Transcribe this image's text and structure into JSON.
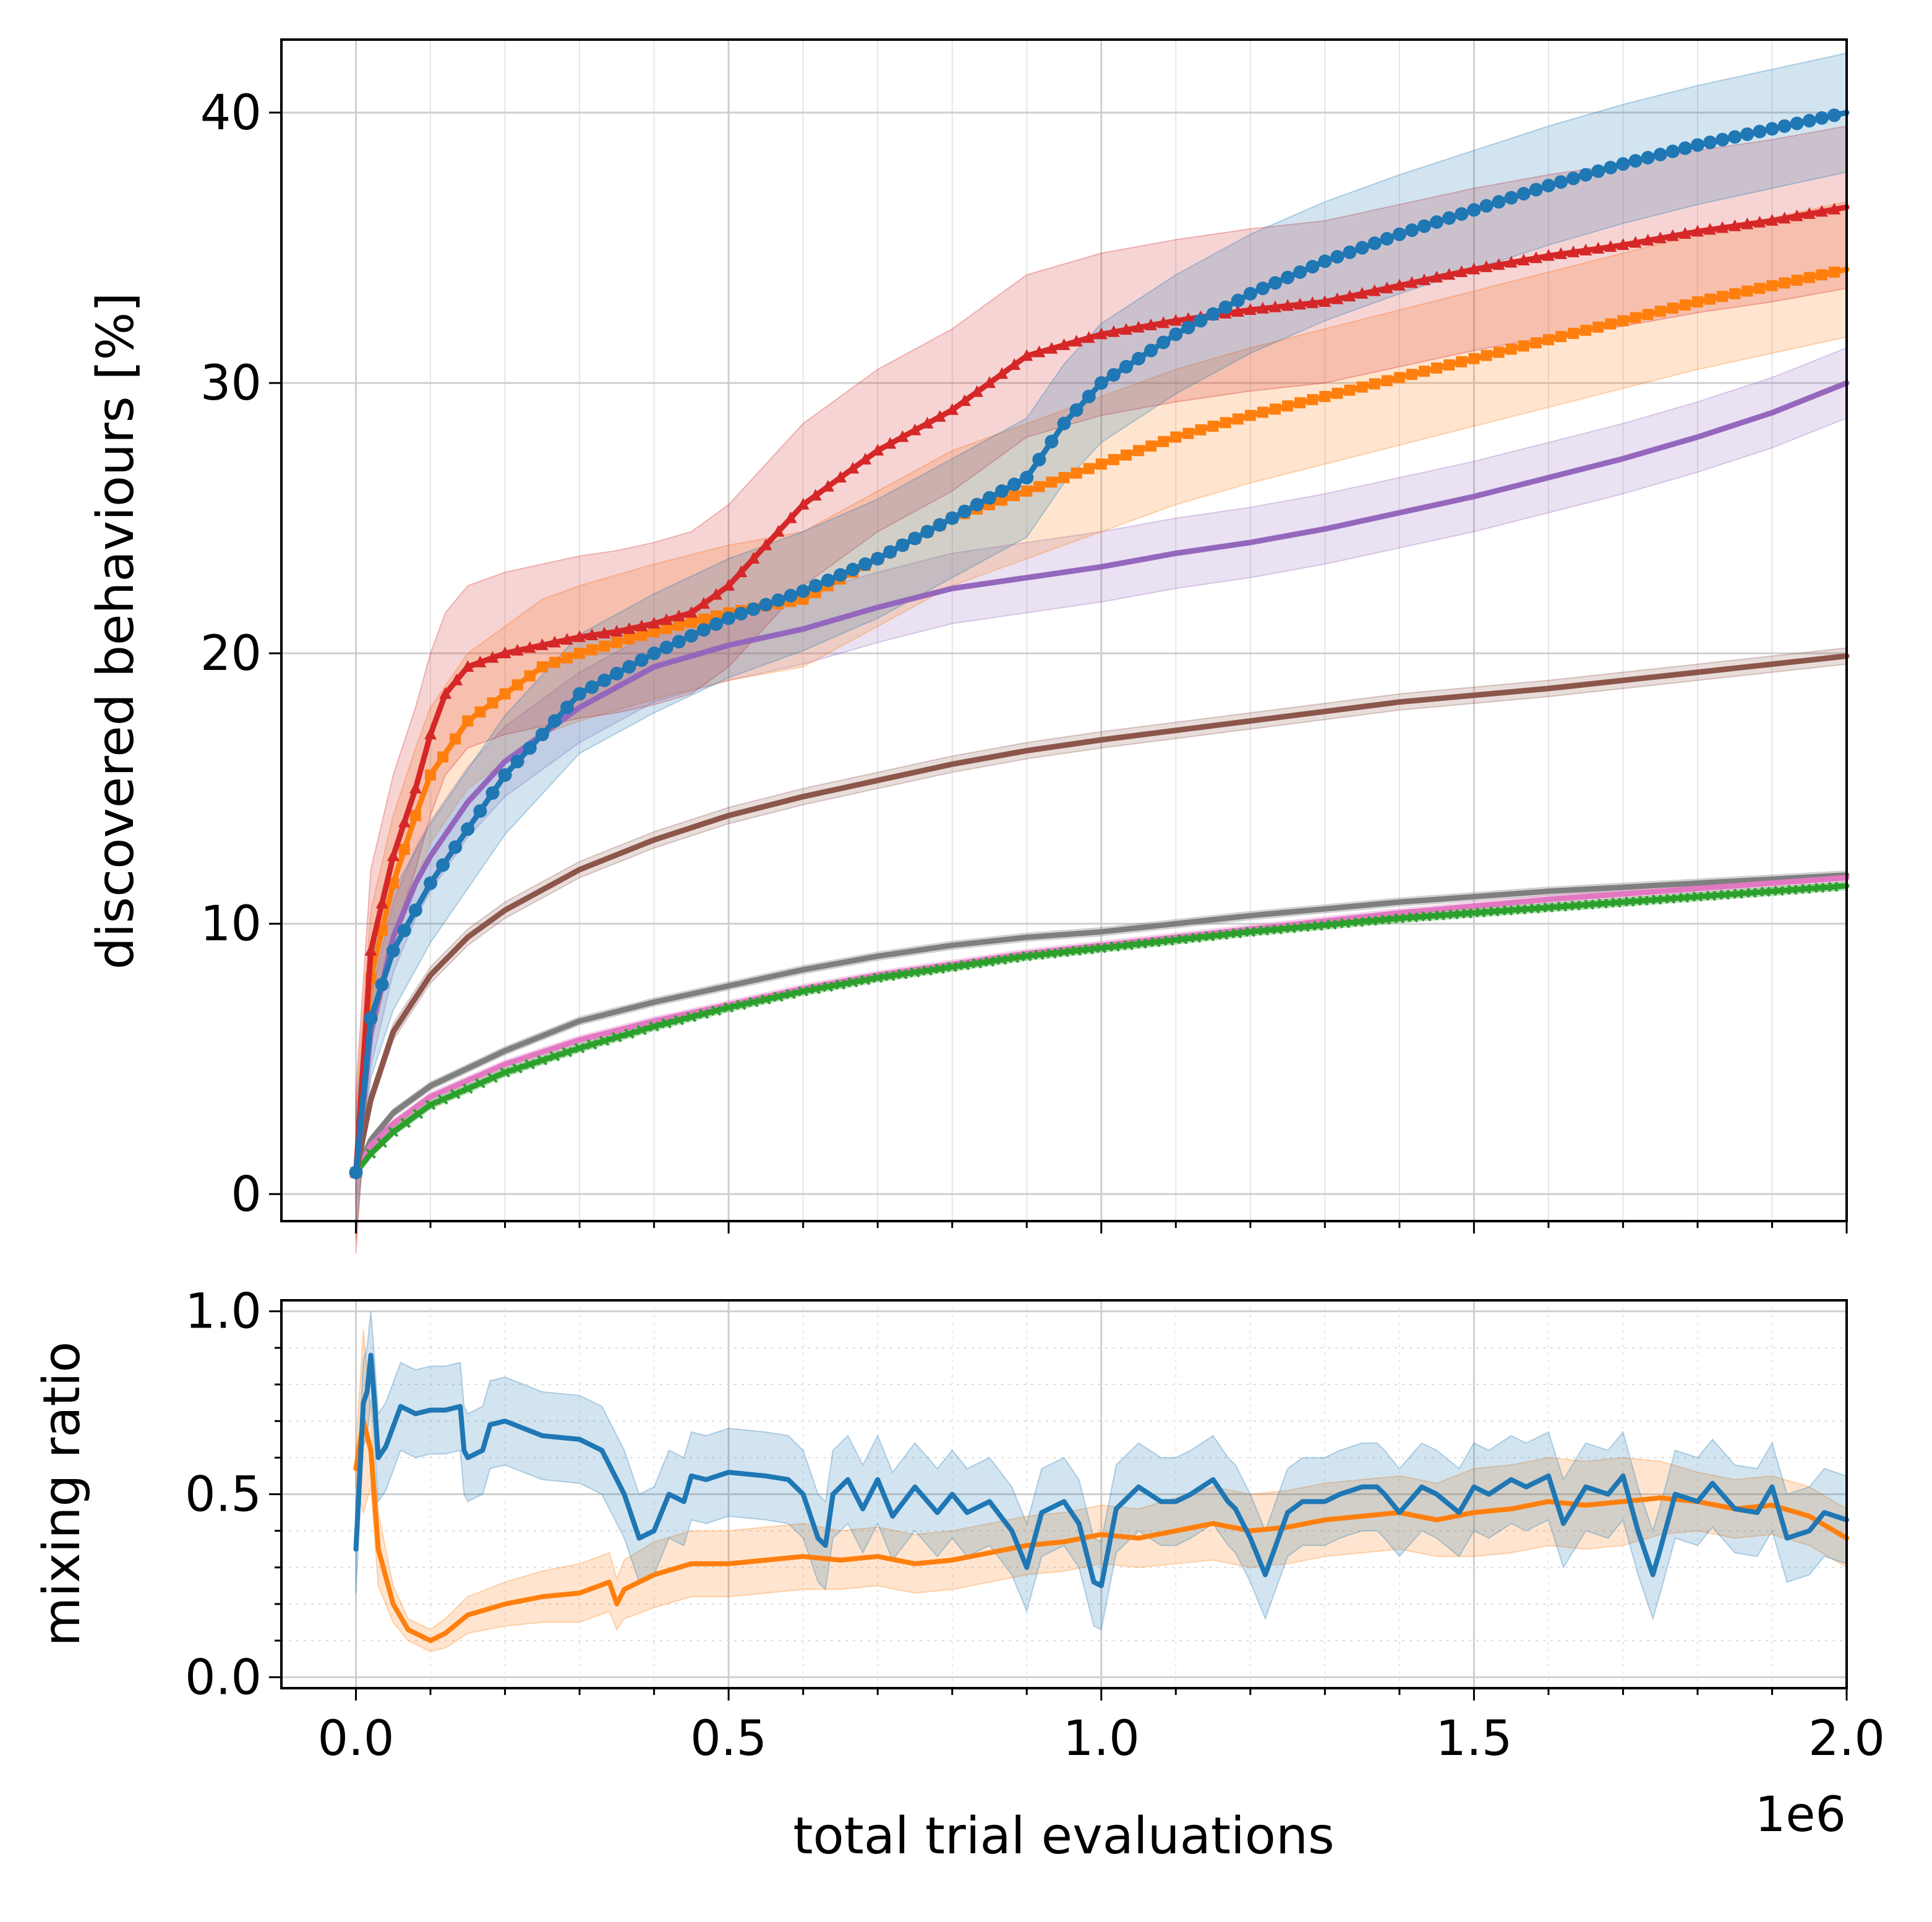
{
  "chart_data": [
    {
      "type": "line",
      "title": "",
      "xlabel": "",
      "ylabel": "discovered behaviours [%]",
      "xlim": [
        -0.1,
        2.0
      ],
      "ylim": [
        -1,
        42.7
      ],
      "x_ticks": [
        0.0,
        0.5,
        1.0,
        1.5,
        2.0
      ],
      "y_ticks": [
        0,
        10,
        20,
        30,
        40
      ],
      "y_tick_labels": [
        "0",
        "10",
        "20",
        "30",
        "40"
      ],
      "grid": true,
      "legend": "none",
      "series": [
        {
          "color": "#7f7f7f",
          "x": [
            0.0,
            0.02,
            0.05,
            0.1,
            0.2,
            0.3,
            0.4,
            0.5,
            0.6,
            0.7,
            0.8,
            0.9,
            1.0,
            1.2,
            1.4,
            1.6,
            1.8,
            2.0
          ],
          "y": [
            0.8,
            2.0,
            3.0,
            4.0,
            5.3,
            6.4,
            7.1,
            7.7,
            8.3,
            8.8,
            9.2,
            9.5,
            9.7,
            10.3,
            10.8,
            11.2,
            11.5,
            11.8
          ],
          "band": 0.15
        },
        {
          "color": "#e377c2",
          "x": [
            0.0,
            0.02,
            0.05,
            0.1,
            0.2,
            0.3,
            0.4,
            0.5,
            0.6,
            0.7,
            0.8,
            0.9,
            1.0,
            1.2,
            1.4,
            1.6,
            1.8,
            2.0
          ],
          "y": [
            0.8,
            1.8,
            2.6,
            3.6,
            4.8,
            5.7,
            6.4,
            7.0,
            7.6,
            8.1,
            8.5,
            8.9,
            9.2,
            9.8,
            10.4,
            10.9,
            11.3,
            11.7
          ],
          "band": 0.15
        },
        {
          "color": "#2ca02c",
          "marker": "x",
          "x": [
            0.0,
            0.02,
            0.05,
            0.1,
            0.2,
            0.3,
            0.4,
            0.5,
            0.6,
            0.7,
            0.8,
            0.9,
            1.0,
            1.2,
            1.4,
            1.6,
            1.8,
            2.0
          ],
          "y": [
            0.8,
            1.5,
            2.3,
            3.3,
            4.5,
            5.4,
            6.2,
            6.9,
            7.5,
            8.0,
            8.4,
            8.8,
            9.1,
            9.7,
            10.2,
            10.6,
            11.0,
            11.4
          ],
          "band": 0.15
        },
        {
          "color": "#8c564b",
          "x": [
            0.0,
            0.02,
            0.05,
            0.1,
            0.15,
            0.2,
            0.3,
            0.4,
            0.5,
            0.6,
            0.7,
            0.8,
            0.9,
            1.0,
            1.2,
            1.4,
            1.6,
            1.8,
            2.0
          ],
          "y": [
            0.8,
            3.5,
            6.0,
            8.1,
            9.5,
            10.5,
            12.0,
            13.1,
            14.0,
            14.7,
            15.3,
            15.9,
            16.4,
            16.8,
            17.5,
            18.2,
            18.7,
            19.3,
            19.9
          ],
          "band": 0.3
        },
        {
          "color": "#9467bd",
          "x": [
            0.0,
            0.02,
            0.05,
            0.08,
            0.1,
            0.15,
            0.2,
            0.3,
            0.4,
            0.5,
            0.6,
            0.7,
            0.8,
            0.9,
            1.0,
            1.1,
            1.2,
            1.3,
            1.4,
            1.5,
            1.6,
            1.7,
            1.8,
            1.9,
            2.0
          ],
          "y": [
            0.8,
            6.0,
            9.5,
            11.5,
            12.5,
            14.5,
            16.0,
            18.0,
            19.5,
            20.3,
            20.9,
            21.7,
            22.4,
            22.8,
            23.2,
            23.7,
            24.1,
            24.6,
            25.2,
            25.8,
            26.5,
            27.2,
            28.0,
            28.9,
            30.0
          ],
          "band": 1.3
        },
        {
          "color": "#ff7f0e",
          "marker": "s",
          "x": [
            0.0,
            0.02,
            0.05,
            0.08,
            0.1,
            0.15,
            0.2,
            0.25,
            0.3,
            0.4,
            0.5,
            0.6,
            0.7,
            0.8,
            0.9,
            1.0,
            1.1,
            1.2,
            1.3,
            1.4,
            1.5,
            1.6,
            1.7,
            1.8,
            1.9,
            2.0
          ],
          "y": [
            0.8,
            8.0,
            11.5,
            14.0,
            15.5,
            17.5,
            18.5,
            19.5,
            20.0,
            20.8,
            21.5,
            22.0,
            23.5,
            25.0,
            26.0,
            27.0,
            28.0,
            28.8,
            29.5,
            30.2,
            30.9,
            31.6,
            32.3,
            33.0,
            33.6,
            34.2
          ],
          "band": 2.5
        },
        {
          "color": "#d62728",
          "marker": "^",
          "x": [
            0.0,
            0.02,
            0.05,
            0.08,
            0.1,
            0.12,
            0.15,
            0.2,
            0.25,
            0.3,
            0.35,
            0.4,
            0.45,
            0.5,
            0.55,
            0.6,
            0.7,
            0.8,
            0.9,
            1.0,
            1.1,
            1.2,
            1.3,
            1.4,
            1.5,
            1.6,
            1.7,
            1.8,
            1.9,
            2.0
          ],
          "y": [
            0.8,
            9.0,
            12.5,
            15.0,
            17.0,
            18.5,
            19.5,
            20.0,
            20.3,
            20.6,
            20.8,
            21.1,
            21.5,
            22.5,
            24.0,
            25.5,
            27.5,
            29.0,
            31.0,
            31.8,
            32.3,
            32.7,
            33.0,
            33.6,
            34.2,
            34.7,
            35.1,
            35.6,
            36.0,
            36.5
          ],
          "band": 3.0
        },
        {
          "color": "#1f77b4",
          "marker": "o",
          "x": [
            0.0,
            0.02,
            0.05,
            0.08,
            0.1,
            0.15,
            0.2,
            0.25,
            0.3,
            0.4,
            0.5,
            0.6,
            0.7,
            0.8,
            0.9,
            0.95,
            1.0,
            1.1,
            1.2,
            1.3,
            1.4,
            1.5,
            1.6,
            1.7,
            1.8,
            1.9,
            2.0
          ],
          "y": [
            0.8,
            6.5,
            9.0,
            10.5,
            11.5,
            13.5,
            15.5,
            17.0,
            18.5,
            20.0,
            21.3,
            22.3,
            23.5,
            25.0,
            26.5,
            28.5,
            30.0,
            31.8,
            33.3,
            34.5,
            35.5,
            36.4,
            37.3,
            38.1,
            38.8,
            39.4,
            40.0
          ],
          "band": 2.2
        }
      ]
    },
    {
      "type": "line",
      "title": "",
      "xlabel": "total trial evaluations",
      "ylabel": "mixing ratio",
      "xlim": [
        -0.1,
        2.0
      ],
      "ylim": [
        -0.03,
        1.03
      ],
      "x_ticks": [
        0.0,
        0.5,
        1.0,
        1.5,
        2.0
      ],
      "x_tick_labels": [
        "0.0",
        "0.5",
        "1.0",
        "1.5",
        "2.0"
      ],
      "x_offset_label": "1e6",
      "y_ticks": [
        0.0,
        0.5,
        1.0
      ],
      "y_tick_labels": [
        "0.0",
        "0.5",
        "1.0"
      ],
      "grid": true,
      "legend": "none",
      "series": [
        {
          "color": "#ff7f0e",
          "x": [
            0.0,
            0.01,
            0.02,
            0.03,
            0.05,
            0.07,
            0.09,
            0.1,
            0.12,
            0.15,
            0.2,
            0.25,
            0.3,
            0.34,
            0.35,
            0.36,
            0.4,
            0.45,
            0.5,
            0.55,
            0.6,
            0.65,
            0.7,
            0.75,
            0.8,
            0.85,
            0.9,
            0.95,
            1.0,
            1.05,
            1.1,
            1.15,
            1.2,
            1.25,
            1.3,
            1.35,
            1.4,
            1.45,
            1.5,
            1.55,
            1.6,
            1.65,
            1.7,
            1.75,
            1.8,
            1.85,
            1.9,
            1.95,
            2.0
          ],
          "y": [
            0.57,
            0.7,
            0.62,
            0.35,
            0.2,
            0.13,
            0.11,
            0.1,
            0.12,
            0.17,
            0.2,
            0.22,
            0.23,
            0.26,
            0.2,
            0.24,
            0.28,
            0.31,
            0.31,
            0.32,
            0.33,
            0.32,
            0.33,
            0.31,
            0.32,
            0.34,
            0.36,
            0.37,
            0.39,
            0.38,
            0.4,
            0.42,
            0.4,
            0.41,
            0.43,
            0.44,
            0.45,
            0.43,
            0.45,
            0.46,
            0.48,
            0.47,
            0.48,
            0.49,
            0.48,
            0.46,
            0.47,
            0.44,
            0.38
          ],
          "band": [
            0.05,
            0.25,
            0.1,
            0.1,
            0.05,
            0.03,
            0.03,
            0.03,
            0.04,
            0.05,
            0.06,
            0.07,
            0.08,
            0.08,
            0.07,
            0.08,
            0.09,
            0.09,
            0.09,
            0.09,
            0.09,
            0.08,
            0.08,
            0.08,
            0.08,
            0.08,
            0.08,
            0.08,
            0.08,
            0.08,
            0.09,
            0.1,
            0.1,
            0.1,
            0.1,
            0.1,
            0.1,
            0.1,
            0.12,
            0.12,
            0.12,
            0.12,
            0.12,
            0.1,
            0.08,
            0.08,
            0.08,
            0.08,
            0.08
          ]
        },
        {
          "color": "#1f77b4",
          "x": [
            0.0,
            0.01,
            0.015,
            0.02,
            0.025,
            0.03,
            0.04,
            0.06,
            0.08,
            0.1,
            0.12,
            0.14,
            0.145,
            0.15,
            0.17,
            0.18,
            0.2,
            0.25,
            0.3,
            0.33,
            0.36,
            0.38,
            0.4,
            0.42,
            0.44,
            0.45,
            0.47,
            0.5,
            0.55,
            0.58,
            0.6,
            0.62,
            0.63,
            0.64,
            0.66,
            0.68,
            0.7,
            0.72,
            0.75,
            0.78,
            0.8,
            0.82,
            0.85,
            0.88,
            0.9,
            0.92,
            0.95,
            0.97,
            0.99,
            1.0,
            1.02,
            1.05,
            1.08,
            1.1,
            1.12,
            1.15,
            1.17,
            1.18,
            1.2,
            1.22,
            1.25,
            1.27,
            1.3,
            1.32,
            1.35,
            1.37,
            1.38,
            1.4,
            1.43,
            1.45,
            1.48,
            1.5,
            1.52,
            1.55,
            1.57,
            1.6,
            1.62,
            1.65,
            1.68,
            1.7,
            1.72,
            1.74,
            1.75,
            1.77,
            1.8,
            1.82,
            1.85,
            1.88,
            1.9,
            1.92,
            1.95,
            1.97,
            2.0
          ],
          "y": [
            0.35,
            0.75,
            0.78,
            0.88,
            0.75,
            0.6,
            0.63,
            0.74,
            0.72,
            0.73,
            0.73,
            0.74,
            0.62,
            0.6,
            0.62,
            0.69,
            0.7,
            0.66,
            0.65,
            0.62,
            0.5,
            0.38,
            0.4,
            0.5,
            0.48,
            0.55,
            0.54,
            0.56,
            0.55,
            0.54,
            0.5,
            0.38,
            0.36,
            0.5,
            0.54,
            0.46,
            0.54,
            0.44,
            0.52,
            0.45,
            0.5,
            0.45,
            0.48,
            0.4,
            0.3,
            0.45,
            0.48,
            0.42,
            0.26,
            0.25,
            0.46,
            0.52,
            0.48,
            0.48,
            0.5,
            0.54,
            0.48,
            0.46,
            0.38,
            0.28,
            0.45,
            0.48,
            0.48,
            0.5,
            0.52,
            0.52,
            0.5,
            0.45,
            0.52,
            0.5,
            0.45,
            0.52,
            0.5,
            0.54,
            0.52,
            0.55,
            0.42,
            0.52,
            0.5,
            0.55,
            0.4,
            0.28,
            0.35,
            0.5,
            0.48,
            0.53,
            0.46,
            0.45,
            0.52,
            0.38,
            0.4,
            0.45,
            0.43
          ],
          "band": 0.12
        }
      ]
    }
  ]
}
